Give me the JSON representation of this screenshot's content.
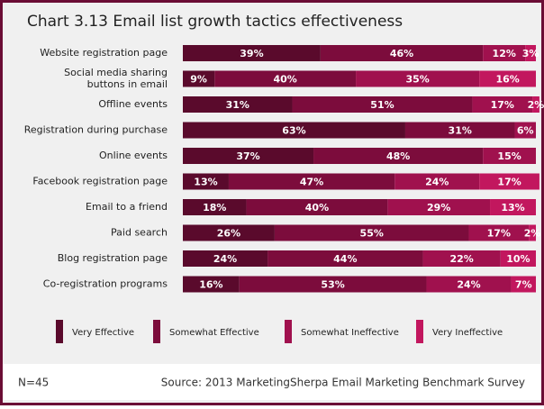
{
  "chart_data": {
    "type": "stacked-bar",
    "orientation": "horizontal",
    "title": "Chart 3.13  Email list growth tactics effectiveness",
    "categories": [
      "Website registration page",
      "Social media sharing\nbuttons in email",
      "Offline events",
      "Registration during purchase",
      "Online events",
      "Facebook registration page",
      "Email to a friend",
      "Paid search",
      "Blog registration page",
      "Co-registration programs"
    ],
    "xlim": [
      0,
      100
    ],
    "series": [
      {
        "name": "Very Effective",
        "color": "#5a0a2c",
        "values": [
          39,
          9,
          31,
          63,
          37,
          13,
          18,
          26,
          24,
          16
        ],
        "value_labels": [
          "39%",
          "9%",
          "31%",
          "63%",
          "37%",
          "13%",
          "18%",
          "26%",
          "24%",
          "16%"
        ]
      },
      {
        "name": "Somewhat Effective",
        "color": "#7c0c3c",
        "values": [
          46,
          40,
          51,
          31,
          48,
          47,
          40,
          55,
          44,
          53
        ],
        "value_labels": [
          "46%",
          "40%",
          "51%",
          "31%",
          "48%",
          "47%",
          "40%",
          "55%",
          "44%",
          "53%"
        ]
      },
      {
        "name": "Somewhat Ineffective",
        "color": "#a0114e",
        "values": [
          12,
          35,
          17,
          6,
          15,
          24,
          29,
          17,
          22,
          24
        ],
        "value_labels": [
          "12%",
          "35%",
          "17%",
          "6%",
          "15%",
          "24%",
          "29%",
          "17%",
          "22%",
          "24%"
        ]
      },
      {
        "name": "Very Ineffective",
        "color": "#c2175e",
        "values": [
          3,
          16,
          2,
          null,
          null,
          17,
          13,
          2,
          10,
          7
        ],
        "value_labels": [
          "3%",
          "16%",
          "2%",
          null,
          null,
          "17%",
          "13%",
          "2%",
          "10%",
          "7%"
        ]
      }
    ],
    "note": "N=45",
    "source": "Source: 2013 MarketingSherpa Email Marketing Benchmark Survey"
  }
}
